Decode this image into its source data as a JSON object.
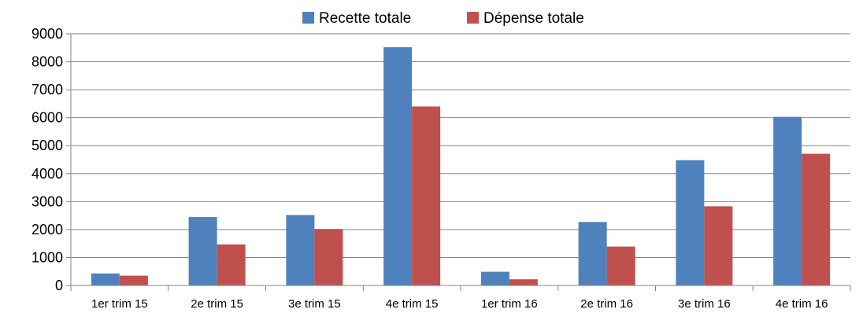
{
  "chart_data": {
    "type": "bar",
    "categories": [
      "1er trim 15",
      "2e trim 15",
      "3e trim 15",
      "4e trim 15",
      "1er trim 16",
      "2e trim 16",
      "3e trim 16",
      "4e trim 16"
    ],
    "series": [
      {
        "name": "Recette totale",
        "color": "#4F81BD",
        "values": [
          430,
          2450,
          2520,
          8520,
          490,
          2270,
          4480,
          6030
        ]
      },
      {
        "name": "Dépense totale",
        "color": "#C0504D",
        "values": [
          350,
          1470,
          2020,
          6400,
          220,
          1390,
          2830,
          4710
        ]
      }
    ],
    "yticks": [
      "0",
      "1000",
      "2000",
      "3000",
      "4000",
      "5000",
      "6000",
      "7000",
      "8000",
      "9000"
    ],
    "ylim": [
      0,
      9000
    ],
    "grid": true,
    "legend_position": "top-center"
  }
}
